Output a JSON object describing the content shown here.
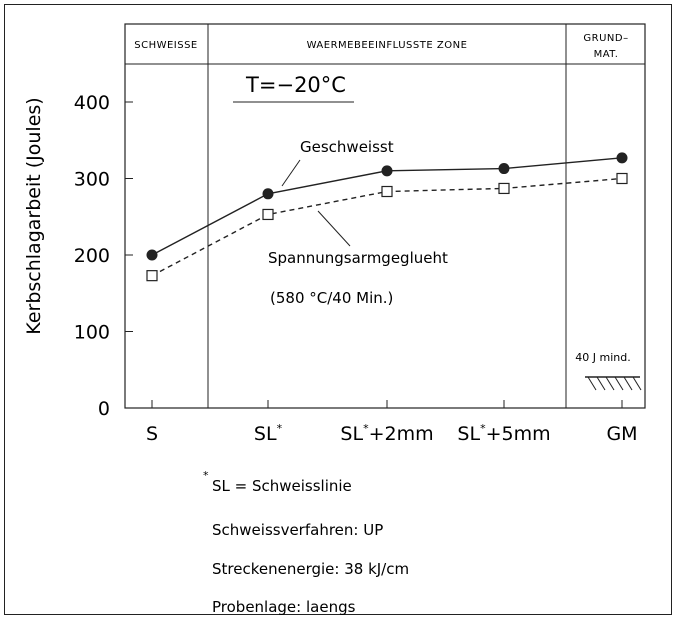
{
  "chart_data": {
    "type": "line",
    "ylabel": "Kerbschlagarbeit (Joules)",
    "ylim": [
      0,
      400
    ],
    "yticks": [
      "0",
      "100",
      "200",
      "300",
      "400"
    ],
    "categories": [
      "S",
      "SL*",
      "SL*+2mm",
      "SL*+5mm",
      "GM"
    ],
    "category_labels": [
      {
        "base": "S",
        "sup": "",
        "tail": ""
      },
      {
        "base": "SL",
        "sup": "*",
        "tail": ""
      },
      {
        "base": "SL",
        "sup": "*",
        "tail": "+2mm"
      },
      {
        "base": "SL",
        "sup": "*",
        "tail": "+5mm"
      },
      {
        "base": "GM",
        "sup": "",
        "tail": ""
      }
    ],
    "zones": [
      {
        "label": "SCHWEISSE"
      },
      {
        "label": "WAERMEBEEINFLUSSTE ZONE"
      },
      {
        "label_line1": "GRUND–",
        "label_line2": "MAT."
      }
    ],
    "temperature": "T=−20°C",
    "series": [
      {
        "name": "Geschweisst",
        "marker": "filled-circle",
        "line": "solid",
        "values": [
          200,
          280,
          310,
          313,
          327
        ]
      },
      {
        "name": "Spannungsarmgeglueht",
        "subtitle": "(580 °C/40 Min.)",
        "marker": "open-square",
        "line": "dashed",
        "values": [
          173,
          253,
          283,
          287,
          300
        ]
      }
    ],
    "minimum_label": "40 J mind."
  },
  "notes": {
    "footnote_mark": "*",
    "footnote": "SL = Schweisslinie",
    "process": "Schweissverfahren: UP",
    "energy": "Streckenenergie: 38 kJ/cm",
    "position": "Probenlage: laengs"
  }
}
